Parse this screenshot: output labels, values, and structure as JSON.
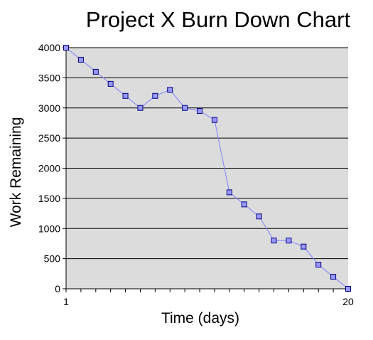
{
  "chart_data": {
    "type": "line",
    "title": "Project X Burn Down Chart",
    "xlabel": "Time (days)",
    "ylabel": "Work Remaining",
    "xlim": [
      1,
      20
    ],
    "ylim": [
      0,
      4000
    ],
    "x_tick_labels": [
      "1",
      "20"
    ],
    "y_ticks": [
      0,
      500,
      1000,
      1500,
      2000,
      2500,
      3000,
      3500,
      4000
    ],
    "grid": true,
    "legend": "none",
    "colors": {
      "plot_background": "#dcdcdc",
      "gridline": "#000000",
      "line": "#8080ff",
      "marker_fill": "#9999ff",
      "marker_edge": "#000080"
    },
    "x": [
      1,
      2,
      3,
      4,
      5,
      6,
      7,
      8,
      9,
      10,
      11,
      12,
      13,
      14,
      15,
      16,
      17,
      18,
      19,
      20
    ],
    "series": [
      {
        "values": [
          4000,
          3800,
          3600,
          3400,
          3200,
          3000,
          3200,
          3300,
          3000,
          2950,
          2800,
          1600,
          1400,
          1200,
          800,
          800,
          700,
          400,
          200,
          0
        ]
      }
    ]
  }
}
